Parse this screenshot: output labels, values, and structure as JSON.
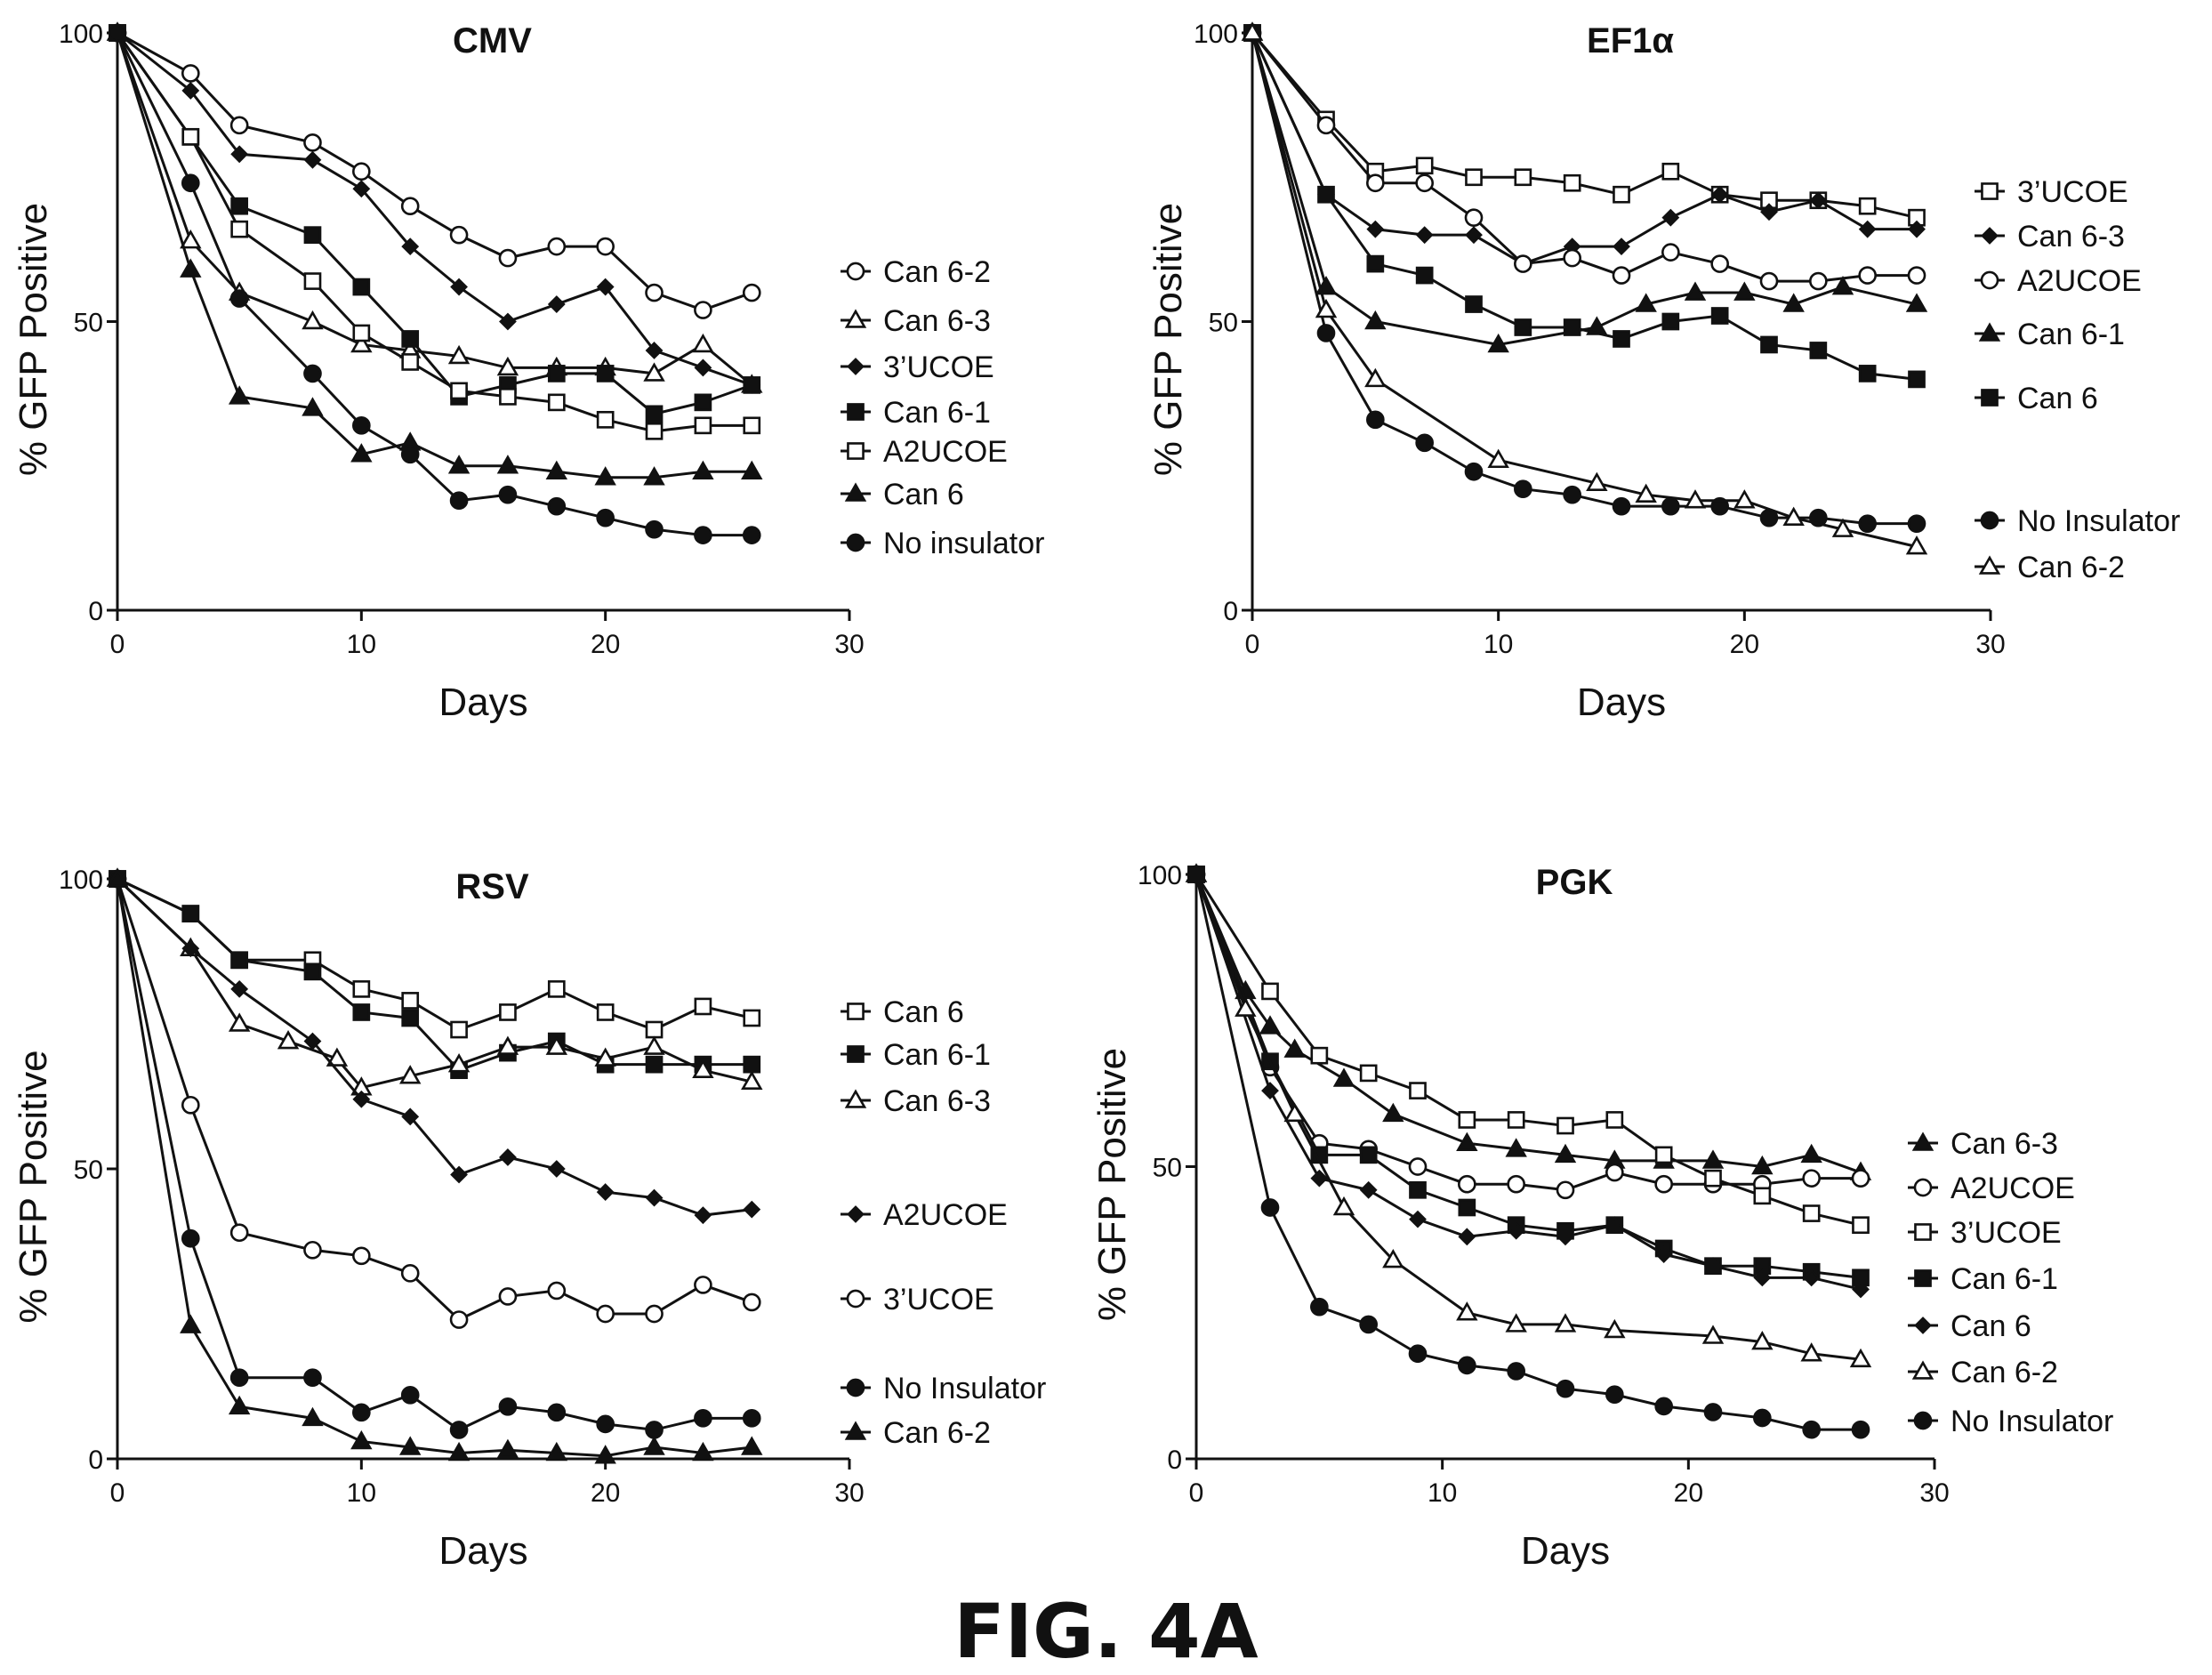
{
  "figure": {
    "label": "FIG. 4A"
  },
  "chart_data": [
    {
      "type": "line",
      "title": "CMV",
      "xlabel": "Days",
      "ylabel": "% GFP Positive",
      "xlim": [
        0,
        30
      ],
      "ylim": [
        0,
        100
      ],
      "xticks": [
        0,
        10,
        20,
        30
      ],
      "yticks": [
        0,
        50,
        100
      ],
      "legend": "right",
      "series": [
        {
          "name": "Can 6-2",
          "marker": "open-circle",
          "x": [
            0,
            3,
            5,
            8,
            10,
            12,
            14,
            16,
            18,
            20,
            22,
            24,
            26
          ],
          "y": [
            100,
            93,
            84,
            81,
            76,
            70,
            65,
            61,
            63,
            63,
            55,
            52,
            55
          ]
        },
        {
          "name": "Can 6-3",
          "marker": "open-triangle",
          "x": [
            0,
            3,
            5,
            8,
            10,
            12,
            14,
            16,
            18,
            20,
            22,
            24,
            26
          ],
          "y": [
            100,
            64,
            55,
            50,
            46,
            45,
            44,
            42,
            42,
            42,
            41,
            46,
            39
          ]
        },
        {
          "name": "3’UCOE",
          "marker": "filled-diamond",
          "x": [
            0,
            3,
            5,
            8,
            10,
            12,
            14,
            16,
            18,
            20,
            22,
            24,
            26
          ],
          "y": [
            100,
            90,
            79,
            78,
            73,
            63,
            56,
            50,
            53,
            56,
            45,
            42,
            39
          ]
        },
        {
          "name": "Can 6-1",
          "marker": "filled-square",
          "x": [
            0,
            3,
            5,
            8,
            10,
            12,
            14,
            16,
            18,
            20,
            22,
            24,
            26
          ],
          "y": [
            100,
            82,
            70,
            65,
            56,
            47,
            37,
            39,
            41,
            41,
            34,
            36,
            39
          ]
        },
        {
          "name": "A2UCOE",
          "marker": "open-square",
          "x": [
            0,
            3,
            5,
            8,
            10,
            12,
            14,
            16,
            18,
            20,
            22,
            24,
            26
          ],
          "y": [
            100,
            82,
            66,
            57,
            48,
            43,
            38,
            37,
            36,
            33,
            31,
            32,
            32
          ]
        },
        {
          "name": "Can 6",
          "marker": "filled-triangle",
          "x": [
            0,
            3,
            5,
            8,
            10,
            12,
            14,
            16,
            18,
            20,
            22,
            24,
            26
          ],
          "y": [
            100,
            59,
            37,
            35,
            27,
            29,
            25,
            25,
            24,
            23,
            23,
            24,
            24
          ]
        },
        {
          "name": "No insulator",
          "marker": "filled-circle",
          "x": [
            0,
            3,
            5,
            8,
            10,
            12,
            14,
            16,
            18,
            20,
            22,
            24,
            26
          ],
          "y": [
            100,
            74,
            54,
            41,
            32,
            27,
            19,
            20,
            18,
            16,
            14,
            13,
            13
          ]
        }
      ]
    },
    {
      "type": "line",
      "title": "EF1α",
      "xlabel": "Days",
      "ylabel": "% GFP Positive",
      "xlim": [
        0,
        30
      ],
      "ylim": [
        0,
        100
      ],
      "xticks": [
        0,
        10,
        20,
        30
      ],
      "yticks": [
        0,
        50,
        100
      ],
      "legend": "right",
      "series": [
        {
          "name": "3’UCOE",
          "marker": "open-square",
          "x": [
            0,
            3,
            5,
            7,
            9,
            11,
            13,
            15,
            17,
            19,
            21,
            23,
            25,
            27
          ],
          "y": [
            100,
            85,
            76,
            77,
            75,
            75,
            74,
            72,
            76,
            72,
            71,
            71,
            70,
            68
          ]
        },
        {
          "name": "Can 6-3",
          "marker": "filled-diamond",
          "x": [
            0,
            3,
            5,
            7,
            9,
            11,
            13,
            15,
            17,
            19,
            21,
            23,
            25,
            27
          ],
          "y": [
            100,
            72,
            66,
            65,
            65,
            60,
            63,
            63,
            68,
            72,
            69,
            71,
            66,
            66
          ]
        },
        {
          "name": "A2UCOE",
          "marker": "open-circle",
          "x": [
            0,
            3,
            5,
            7,
            9,
            11,
            13,
            15,
            17,
            19,
            21,
            23,
            25,
            27
          ],
          "y": [
            100,
            84,
            74,
            74,
            68,
            60,
            61,
            58,
            62,
            60,
            57,
            57,
            58,
            58
          ]
        },
        {
          "name": "Can 6-1",
          "marker": "filled-triangle",
          "x": [
            0,
            3,
            5,
            10,
            14,
            16,
            18,
            20,
            22,
            24,
            27
          ],
          "y": [
            100,
            56,
            50,
            46,
            49,
            53,
            55,
            55,
            53,
            56,
            53
          ]
        },
        {
          "name": "Can 6",
          "marker": "filled-square",
          "x": [
            0,
            3,
            5,
            7,
            9,
            11,
            13,
            15,
            17,
            19,
            21,
            23,
            25,
            27
          ],
          "y": [
            100,
            72,
            60,
            58,
            53,
            49,
            49,
            47,
            50,
            51,
            46,
            45,
            41,
            40
          ]
        },
        {
          "name": "No Insulator",
          "marker": "filled-circle",
          "x": [
            0,
            3,
            5,
            7,
            9,
            11,
            13,
            15,
            17,
            19,
            21,
            23,
            25,
            27
          ],
          "y": [
            100,
            48,
            33,
            29,
            24,
            21,
            20,
            18,
            18,
            18,
            16,
            16,
            15,
            15
          ]
        },
        {
          "name": "Can 6-2",
          "marker": "open-triangle",
          "x": [
            0,
            3,
            5,
            10,
            14,
            16,
            18,
            20,
            22,
            24,
            27
          ],
          "y": [
            100,
            52,
            40,
            26,
            22,
            20,
            19,
            19,
            16,
            14,
            11
          ]
        }
      ]
    },
    {
      "type": "line",
      "title": "RSV",
      "xlabel": "Days",
      "ylabel": "% GFP Positive",
      "xlim": [
        0,
        30
      ],
      "ylim": [
        0,
        100
      ],
      "xticks": [
        0,
        10,
        20,
        30
      ],
      "yticks": [
        0,
        50,
        100
      ],
      "legend": "right",
      "series": [
        {
          "name": "Can 6",
          "marker": "open-square",
          "x": [
            0,
            3,
            5,
            8,
            10,
            12,
            14,
            16,
            18,
            20,
            22,
            24,
            26
          ],
          "y": [
            100,
            94,
            86,
            86,
            81,
            79,
            74,
            77,
            81,
            77,
            74,
            78,
            76
          ]
        },
        {
          "name": "Can 6-1",
          "marker": "filled-square",
          "x": [
            0,
            3,
            5,
            8,
            10,
            12,
            14,
            16,
            18,
            20,
            22,
            24,
            26
          ],
          "y": [
            100,
            94,
            86,
            84,
            77,
            76,
            67,
            70,
            72,
            68,
            68,
            68,
            68
          ]
        },
        {
          "name": "Can 6-3",
          "marker": "open-triangle",
          "x": [
            0,
            3,
            5,
            7,
            9,
            10,
            12,
            14,
            16,
            18,
            20,
            22,
            24,
            26
          ],
          "y": [
            100,
            88,
            75,
            72,
            69,
            64,
            66,
            68,
            71,
            71,
            69,
            71,
            67,
            65
          ]
        },
        {
          "name": "A2UCOE",
          "marker": "filled-diamond",
          "x": [
            0,
            3,
            5,
            8,
            10,
            12,
            14,
            16,
            18,
            20,
            22,
            24,
            26
          ],
          "y": [
            100,
            88,
            81,
            72,
            62,
            59,
            49,
            52,
            50,
            46,
            45,
            42,
            43
          ]
        },
        {
          "name": "3’UCOE",
          "marker": "open-circle",
          "x": [
            0,
            3,
            5,
            8,
            10,
            12,
            14,
            16,
            18,
            20,
            22,
            24,
            26
          ],
          "y": [
            100,
            61,
            39,
            36,
            35,
            32,
            24,
            28,
            29,
            25,
            25,
            30,
            27
          ]
        },
        {
          "name": "No Insulator",
          "marker": "filled-circle",
          "x": [
            0,
            3,
            5,
            8,
            10,
            12,
            14,
            16,
            18,
            20,
            22,
            24,
            26
          ],
          "y": [
            100,
            38,
            14,
            14,
            8,
            11,
            5,
            9,
            8,
            6,
            5,
            7,
            7
          ]
        },
        {
          "name": "Can 6-2",
          "marker": "filled-triangle",
          "x": [
            0,
            3,
            5,
            8,
            10,
            12,
            14,
            16,
            18,
            20,
            22,
            24,
            26
          ],
          "y": [
            100,
            23,
            9,
            7,
            3,
            2,
            1,
            1.5,
            1,
            0.5,
            2,
            1,
            2
          ]
        }
      ]
    },
    {
      "type": "line",
      "title": "PGK",
      "xlabel": "Days",
      "ylabel": "% GFP Positive",
      "xlim": [
        0,
        30
      ],
      "ylim": [
        0,
        100
      ],
      "xticks": [
        0,
        10,
        20,
        30
      ],
      "yticks": [
        0,
        50,
        100
      ],
      "legend": "right",
      "series": [
        {
          "name": "Can 6-3",
          "marker": "filled-triangle",
          "x": [
            0,
            2,
            3,
            4,
            6,
            8,
            11,
            13,
            15,
            17,
            19,
            21,
            23,
            25,
            27
          ],
          "y": [
            100,
            80,
            74,
            70,
            65,
            59,
            54,
            53,
            52,
            51,
            51,
            51,
            50,
            52,
            49
          ]
        },
        {
          "name": "A2UCOE",
          "marker": "open-circle",
          "x": [
            0,
            3,
            5,
            7,
            9,
            11,
            13,
            15,
            17,
            19,
            21,
            23,
            25,
            27
          ],
          "y": [
            100,
            67,
            54,
            53,
            50,
            47,
            47,
            46,
            49,
            47,
            47,
            47,
            48,
            48
          ]
        },
        {
          "name": "3’UCOE",
          "marker": "open-square",
          "x": [
            0,
            3,
            5,
            7,
            9,
            11,
            13,
            15,
            17,
            19,
            21,
            23,
            25,
            27
          ],
          "y": [
            100,
            80,
            69,
            66,
            63,
            58,
            58,
            57,
            58,
            52,
            48,
            45,
            42,
            40
          ]
        },
        {
          "name": "Can 6-1",
          "marker": "filled-square",
          "x": [
            0,
            3,
            5,
            7,
            9,
            11,
            13,
            15,
            17,
            19,
            21,
            23,
            25,
            27
          ],
          "y": [
            100,
            68,
            52,
            52,
            46,
            43,
            40,
            39,
            40,
            36,
            33,
            33,
            32,
            31
          ]
        },
        {
          "name": "Can 6",
          "marker": "filled-diamond",
          "x": [
            0,
            3,
            5,
            7,
            9,
            11,
            13,
            15,
            17,
            19,
            21,
            23,
            25,
            27
          ],
          "y": [
            100,
            63,
            48,
            46,
            41,
            38,
            39,
            38,
            40,
            35,
            33,
            31,
            31,
            29
          ]
        },
        {
          "name": "Can 6-2",
          "marker": "open-triangle",
          "x": [
            0,
            2,
            4,
            6,
            8,
            11,
            13,
            15,
            17,
            21,
            23,
            25,
            27
          ],
          "y": [
            100,
            77,
            59,
            43,
            34,
            25,
            23,
            23,
            22,
            21,
            20,
            18,
            17
          ]
        },
        {
          "name": "No Insulator",
          "marker": "filled-circle",
          "x": [
            0,
            3,
            5,
            7,
            9,
            11,
            13,
            15,
            17,
            19,
            21,
            23,
            25,
            27
          ],
          "y": [
            100,
            43,
            26,
            23,
            18,
            16,
            15,
            12,
            11,
            9,
            8,
            7,
            5,
            5
          ]
        }
      ]
    }
  ]
}
